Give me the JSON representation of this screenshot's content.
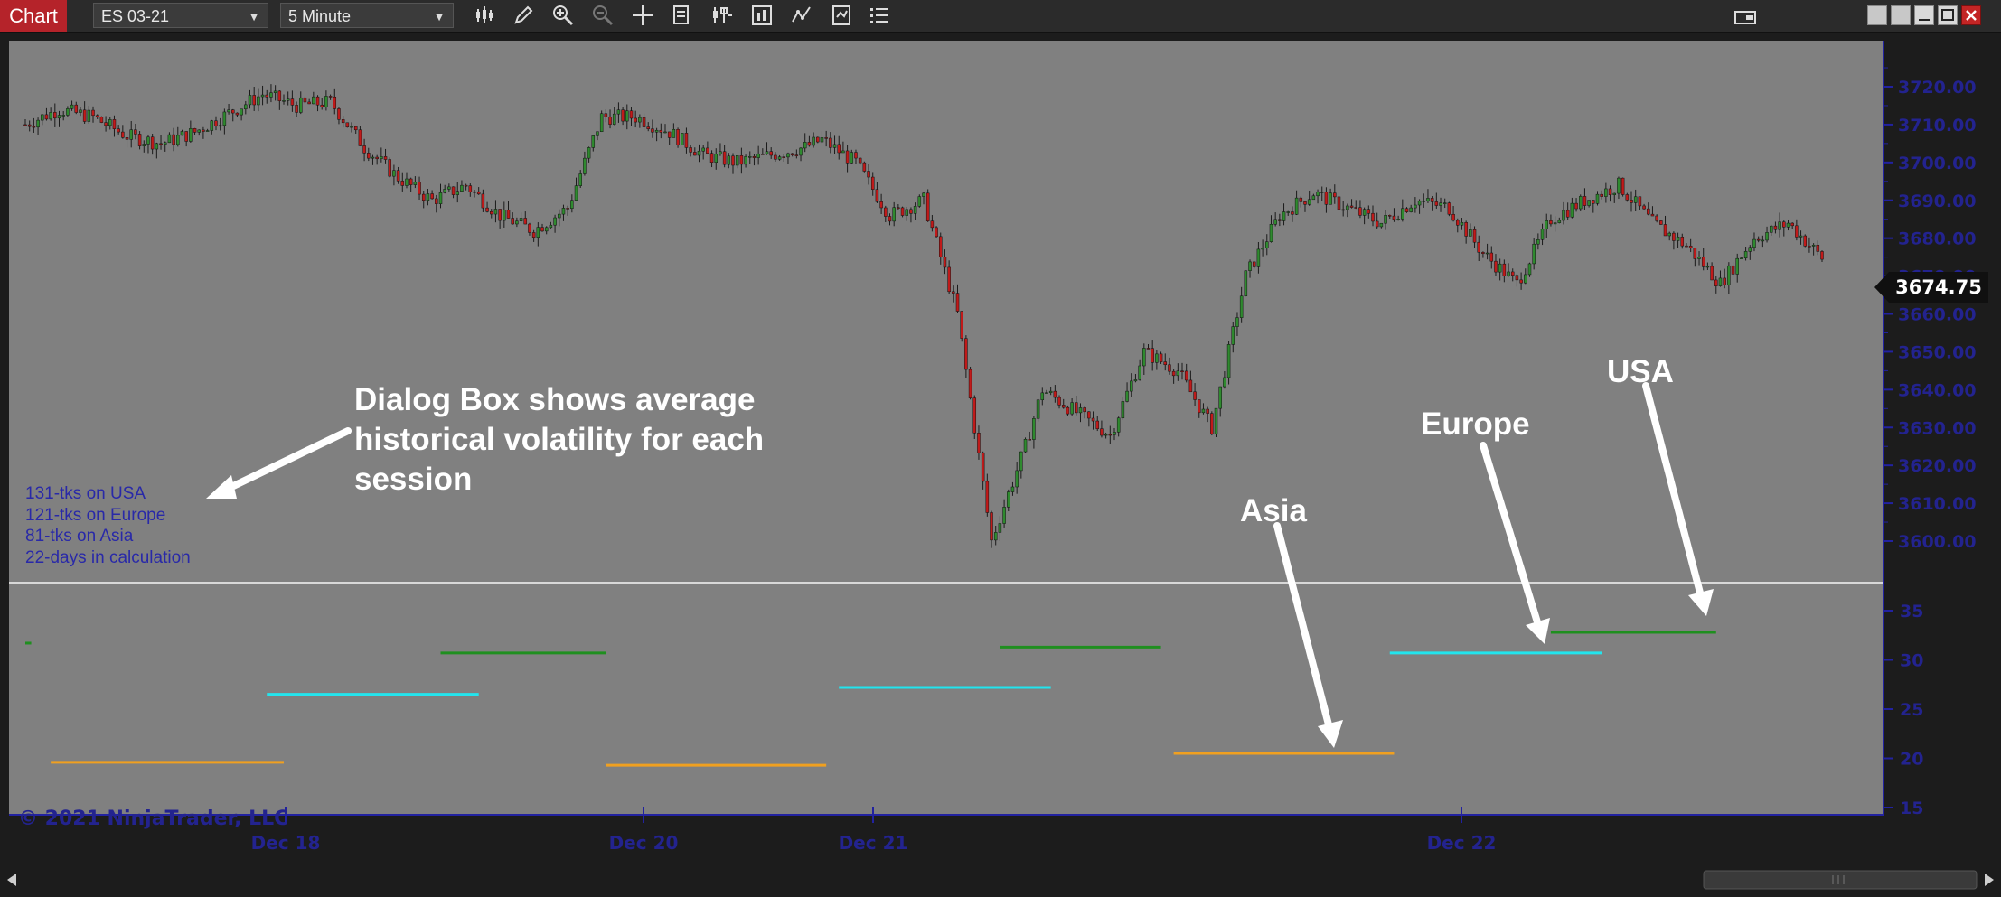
{
  "toolbar": {
    "tab_label": "Chart",
    "instrument": "ES 03-21",
    "interval": "5 Minute",
    "icons": [
      "bar-type-icon",
      "pencil-icon",
      "zoom-in-icon",
      "zoom-out-icon",
      "crosshair-icon",
      "data-box-icon",
      "properties-icon",
      "strategies-icon",
      "indicators-icon",
      "templates-icon",
      "list-icon"
    ]
  },
  "price_axis": {
    "labels": [
      "3720.00",
      "3710.00",
      "3700.00",
      "3690.00",
      "3680.00",
      "3670.00",
      "3660.00",
      "3650.00",
      "3640.00",
      "3630.00",
      "3620.00",
      "3610.00",
      "3600.00"
    ],
    "current_price": "3674.75"
  },
  "indicator_axis": {
    "labels": [
      "35",
      "30",
      "25",
      "20",
      "15"
    ]
  },
  "time_axis": {
    "labels": [
      "Dec 18",
      "Dec 20",
      "Dec 21",
      "Dec 22"
    ]
  },
  "info_lines": [
    "131-tks on USA",
    "121-tks on Europe",
    "81-tks on Asia",
    "22-days in calculation"
  ],
  "annotations": {
    "dialog": [
      "Dialog Box shows average",
      "historical volatility for each",
      "session"
    ],
    "asia": "Asia",
    "europe": "Europe",
    "usa": "USA"
  },
  "copyright": "© 2021 NinjaTrader, LLC",
  "colors": {
    "asia": "#f0a020",
    "europe": "#22e5ee",
    "usa": "#1f8f1f",
    "up_candle": "#2f8a2f",
    "down_candle": "#c01a1a",
    "panel_bg": "#808080",
    "axis_text": "#23238f"
  },
  "chart_data": [
    {
      "type": "line",
      "title": "ES 03-21 5 Minute",
      "y_range": [
        3596,
        3726
      ],
      "x": [
        0,
        4,
        8,
        12,
        16,
        20,
        24,
        28,
        32,
        36,
        40,
        44,
        48,
        52,
        56,
        60,
        64,
        68,
        72,
        76,
        80,
        84,
        88,
        92,
        94,
        98,
        102,
        106,
        110,
        114,
        118,
        120,
        124,
        128,
        132,
        136,
        140,
        144,
        148,
        152,
        156,
        160,
        164,
        168,
        172,
        176,
        180,
        184,
        188,
        192,
        196,
        200,
        204,
        208,
        212
      ],
      "series": [
        {
          "values": [
            3710,
            3714,
            3712,
            3707,
            3705,
            3708,
            3713,
            3718,
            3715,
            3716,
            3704,
            3696,
            3690,
            3694,
            3686,
            3682,
            3688,
            3712,
            3712,
            3708,
            3702,
            3700,
            3702,
            3704,
            3706,
            3700,
            3686,
            3690,
            3660,
            3600,
            3625,
            3640,
            3634,
            3628,
            3650,
            3645,
            3630,
            3670,
            3686,
            3692,
            3688,
            3684,
            3690,
            3688,
            3676,
            3668,
            3685,
            3690,
            3694,
            3684,
            3678,
            3668,
            3680,
            3684,
            3674.75
          ]
        }
      ]
    },
    {
      "type": "line",
      "title": "Session volatility",
      "y_range": [
        15,
        37
      ],
      "x_labels": [
        "Dec 18",
        "Dec 20",
        "Dec 21",
        "Dec 22"
      ],
      "series": [
        {
          "name": "USA",
          "segments": [
            [
              0,
              0.7,
              31.7
            ],
            [
              49,
              68.5,
              30.7
            ],
            [
              115,
              134,
              31.3
            ],
            [
              180,
              199.5,
              32.8
            ]
          ]
        },
        {
          "name": "Europe",
          "segments": [
            [
              28.5,
              53.5,
              26.5
            ],
            [
              96,
              121,
              27.2
            ],
            [
              161,
              186,
              30.7
            ]
          ]
        },
        {
          "name": "Asia",
          "segments": [
            [
              3,
              30.5,
              19.6
            ],
            [
              68.5,
              94.5,
              19.3
            ],
            [
              135.5,
              161.5,
              20.5
            ]
          ]
        }
      ]
    }
  ]
}
